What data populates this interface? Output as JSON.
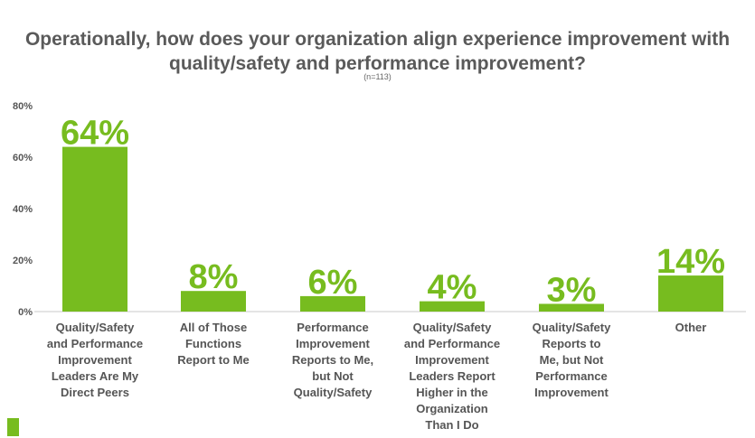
{
  "colors": {
    "bar": "#77bc1f",
    "axis_text": "#555555",
    "title": "#5a5a5a",
    "grid": "#c8c8c8"
  },
  "chart_data": {
    "type": "bar",
    "title": "Operationally, how does your organization align experience improvement with quality/safety and performance improvement?",
    "subtitle": "(n=113)",
    "categories": [
      "Quality/Safety and Performance Improvement Leaders Are My Direct Peers",
      "All of Those Functions Report to Me",
      "Performance Improvement Reports to Me, but Not Quality/Safety",
      "Quality/Safety and Performance Improvement Leaders Report Higher in the Organization Than I Do",
      "Quality/Safety Reports to Me, but Not Performance Improvement",
      "Other"
    ],
    "category_lines": [
      [
        "Quality/Safety",
        "and Performance",
        "Improvement",
        "Leaders Are My",
        "Direct Peers"
      ],
      [
        "All of Those",
        "Functions",
        "Report to Me"
      ],
      [
        "Performance",
        "Improvement",
        "Reports to Me,",
        "but Not",
        "Quality/Safety"
      ],
      [
        "Quality/Safety",
        "and Performance",
        "Improvement",
        "Leaders Report",
        "Higher in the",
        "Organization",
        "Than I Do"
      ],
      [
        "Quality/Safety",
        "Reports to",
        "Me, but Not",
        "Performance",
        "Improvement"
      ],
      [
        "Other"
      ]
    ],
    "values": [
      64,
      8,
      6,
      4,
      3,
      14
    ],
    "data_labels": [
      "64%",
      "8%",
      "6%",
      "4%",
      "3%",
      "14%"
    ],
    "ylim": [
      0,
      80
    ],
    "yticks": [
      0,
      20,
      40,
      60,
      80
    ],
    "ytick_labels": [
      "0%",
      "20%",
      "40%",
      "60%",
      "80%"
    ],
    "grid": false
  }
}
